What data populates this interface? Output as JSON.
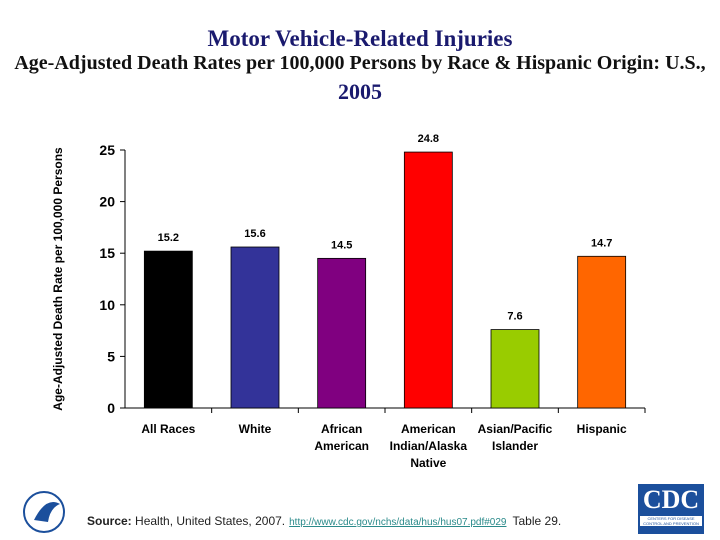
{
  "title": "Motor Vehicle-Related Injuries",
  "subtitle": "Age-Adjusted Death Rates per 100,000 Persons by Race & Hispanic Origin: U.S.,",
  "subtitle_year": "2005",
  "chart_data": {
    "type": "bar",
    "categories": [
      [
        "All Races"
      ],
      [
        "White"
      ],
      [
        "African",
        "American"
      ],
      [
        "American",
        "Indian/Alaska",
        "Native"
      ],
      [
        "Asian/Pacific",
        "Islander"
      ],
      [
        "Hispanic"
      ]
    ],
    "values": [
      15.2,
      15.6,
      14.5,
      24.8,
      7.6,
      14.7
    ],
    "value_labels": [
      "15.2",
      "15.6",
      "14.5",
      "24.8",
      "7.6",
      "14.7"
    ],
    "colors": [
      "#000000",
      "#333399",
      "#800080",
      "#ff0000",
      "#99cc00",
      "#ff6600"
    ],
    "ylabel": "Age-Adjusted Death Rate per 100,000 Persons",
    "xlabel": "",
    "ylim": [
      0,
      25
    ],
    "yticks": [
      "0",
      "5",
      "10",
      "15",
      "20",
      "25"
    ],
    "grid": false
  },
  "source": {
    "label": "Source:",
    "text": "Health, United States, 2007.",
    "link": "http://www.cdc.gov/nchs/data/hus/hus07.pdf#029",
    "table": "Table 29."
  },
  "logos": {
    "cdc": "CDC",
    "cdc_sub": "CENTERS FOR DISEASE CONTROL AND PREVENTION"
  }
}
